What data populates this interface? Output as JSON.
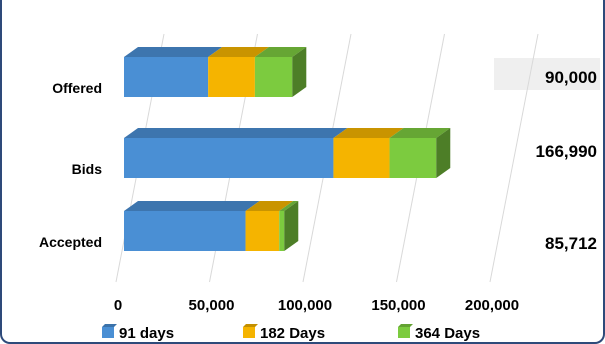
{
  "chart_data": {
    "type": "bar",
    "orientation": "horizontal",
    "stacked": true,
    "style": "3d",
    "categories": [
      "Offered",
      "Bids",
      "Accepted"
    ],
    "series": [
      {
        "name": "91 days",
        "color": "#4a8fd4",
        "values": [
          45000,
          112000,
          65000
        ]
      },
      {
        "name": "182 Days",
        "color": "#f5b400",
        "values": [
          25000,
          30000,
          18000
        ]
      },
      {
        "name": "364 Days",
        "color": "#7ccb3f",
        "values": [
          20000,
          24990,
          2712
        ]
      }
    ],
    "totals": [
      "90,000",
      "166,990",
      "85,712"
    ],
    "x_ticks": [
      "0",
      "50,000",
      "100,000",
      "150,000",
      "200,000"
    ],
    "xlim": [
      0,
      200000
    ],
    "legend_position": "bottom",
    "grid": true
  }
}
